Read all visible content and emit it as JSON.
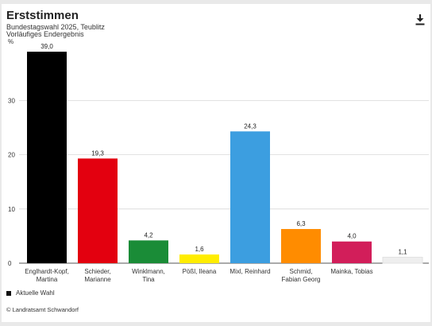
{
  "header": {
    "title": "Erststimmen",
    "subtitle": "Bundestagswahl 2025, Teublitz",
    "subtitle2": "Vorläufiges Endergebnis"
  },
  "download_icon": "download-icon",
  "legend": {
    "label": "Aktuelle Wahl",
    "color": "#111111"
  },
  "source": "© Landratsamt Schwandorf",
  "chart_data": {
    "type": "bar",
    "categories": [
      [
        "Englhardt-Kopf,",
        "Martina"
      ],
      [
        "Schieder,",
        "Marianne"
      ],
      [
        "Winklmann,",
        "Tina"
      ],
      [
        "Pößl, Ileana"
      ],
      [
        "Mixl, Reinhard"
      ],
      [
        "Schmid,",
        "Fabian Georg"
      ],
      [
        "Mainka, Tobias"
      ],
      [
        ""
      ]
    ],
    "values": [
      39.0,
      19.3,
      4.2,
      1.6,
      24.3,
      6.3,
      4.0,
      1.1
    ],
    "value_labels": [
      "39,0",
      "19,3",
      "4,2",
      "1,6",
      "24,3",
      "6,3",
      "4,0",
      "1,1"
    ],
    "colors": [
      "#000000",
      "#e3000f",
      "#1a8c37",
      "#ffed00",
      "#3c9ee0",
      "#ff8c00",
      "#d21e5a",
      "#eeeeee"
    ],
    "ylabel": "%",
    "yticks": [
      0,
      10,
      20,
      30
    ],
    "ylim": [
      0,
      39.0
    ],
    "grid": true,
    "series": [
      {
        "name": "Aktuelle Wahl",
        "values": [
          39.0,
          19.3,
          4.2,
          1.6,
          24.3,
          6.3,
          4.0,
          1.1
        ]
      }
    ]
  }
}
